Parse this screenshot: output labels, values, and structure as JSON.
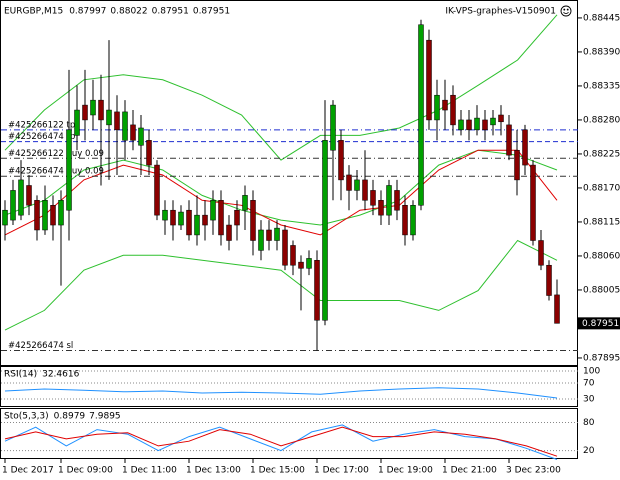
{
  "symbol": "EURGBP,M15",
  "terminal": "IK-VPS-graphes-V150901",
  "chart_data": [
    {
      "type": "candlestick",
      "categories": [
        "1 Dec 2017",
        null,
        null,
        null,
        null,
        null,
        null,
        "1 Dec 09:00",
        null,
        null,
        null,
        null,
        null,
        null,
        null,
        "1 Dec 11:00",
        null,
        null,
        null,
        null,
        null,
        null,
        null,
        "1 Dec 13:00",
        null,
        null,
        null,
        null,
        null,
        null,
        null,
        "1 Dec 15:00",
        null,
        null,
        null,
        null,
        null,
        null,
        null,
        "1 Dec 17:00",
        null,
        null,
        null,
        null,
        null,
        null,
        null,
        "1 Dec 19:00",
        null,
        null,
        null,
        null,
        null,
        null,
        null,
        "1 Dec 21:00",
        null,
        null,
        null,
        null,
        null,
        null,
        null,
        "3 Dec 23:00",
        null,
        null,
        null,
        null,
        null,
        null
      ],
      "open": [
        0.8811,
        0.88118,
        0.88126,
        0.88174,
        0.8815,
        0.88102,
        0.88142,
        0.8811,
        0.88134,
        0.88255,
        0.88304,
        0.88288,
        0.88312,
        0.88272,
        0.88293,
        0.88247,
        0.88272,
        0.88239,
        0.88247,
        0.88207,
        0.88118,
        0.88134,
        0.8811,
        0.88134,
        0.88094,
        0.88126,
        0.88118,
        0.8815,
        0.8811,
        0.88134,
        0.88134,
        0.8815,
        0.88069,
        0.88102,
        0.88085,
        0.88102,
        0.88077,
        0.8805,
        0.8804,
        0.88053,
        0.87956,
        0.88231,
        0.88247,
        0.88191,
        0.88166,
        0.88183,
        0.88166,
        0.8815,
        0.88126,
        0.88166,
        0.88142,
        0.88094,
        0.88142,
        0.88409,
        0.8828,
        0.88312,
        0.8832,
        0.88264,
        0.8828,
        0.88264,
        0.8828,
        0.88272,
        0.88288,
        0.88272,
        0.88231,
        0.88264,
        0.88207,
        0.88085,
        0.88045,
        0.87997
      ],
      "high": [
        0.8815,
        0.88183,
        0.88215,
        0.88191,
        0.88158,
        0.88174,
        0.88158,
        0.88166,
        0.88361,
        0.88336,
        0.88361,
        0.88345,
        0.88353,
        0.88409,
        0.8832,
        0.88312,
        0.88296,
        0.88288,
        0.88264,
        0.88215,
        0.8815,
        0.8815,
        0.88142,
        0.8815,
        0.88158,
        0.8815,
        0.88166,
        0.88166,
        0.88126,
        0.8815,
        0.88174,
        0.88166,
        0.88118,
        0.88118,
        0.88118,
        0.8811,
        0.88085,
        0.88061,
        0.88069,
        0.88069,
        0.88312,
        0.88312,
        0.88264,
        0.88207,
        0.88199,
        0.88231,
        0.88183,
        0.88166,
        0.88183,
        0.88183,
        0.88158,
        0.8815,
        0.88442,
        0.88426,
        0.88345,
        0.88345,
        0.88336,
        0.88296,
        0.88296,
        0.88304,
        0.88296,
        0.88296,
        0.88304,
        0.88288,
        0.88264,
        0.88272,
        0.88215,
        0.88102,
        0.88053,
        0.88022
      ],
      "low": [
        0.88085,
        0.8811,
        0.88118,
        0.88126,
        0.88085,
        0.88094,
        0.88085,
        0.88012,
        0.88085,
        0.88231,
        0.88247,
        0.88264,
        0.88174,
        0.88183,
        0.88191,
        0.88215,
        0.88231,
        0.88191,
        0.88191,
        0.88118,
        0.88094,
        0.88085,
        0.88102,
        0.88085,
        0.88077,
        0.88085,
        0.88094,
        0.88077,
        0.88069,
        0.88085,
        0.88102,
        0.88061,
        0.88053,
        0.88069,
        0.88069,
        0.88037,
        0.88029,
        0.87972,
        0.88029,
        0.87907,
        0.87948,
        0.8815,
        0.8815,
        0.88134,
        0.8815,
        0.88134,
        0.88126,
        0.8811,
        0.8811,
        0.88118,
        0.88077,
        0.88085,
        0.88134,
        0.88264,
        0.88247,
        0.88264,
        0.88255,
        0.88255,
        0.88247,
        0.88255,
        0.88247,
        0.88255,
        0.88255,
        0.88215,
        0.88158,
        0.88191,
        0.88077,
        0.88037,
        0.87988,
        0.87951
      ],
      "close": [
        0.88134,
        0.88166,
        0.88183,
        0.88142,
        0.88102,
        0.8815,
        0.8811,
        0.8815,
        0.88264,
        0.88296,
        0.8828,
        0.88312,
        0.8828,
        0.88296,
        0.88264,
        0.88293,
        0.88247,
        0.88267,
        0.88207,
        0.88126,
        0.88134,
        0.8811,
        0.88131,
        0.88094,
        0.88126,
        0.8811,
        0.8815,
        0.88094,
        0.88085,
        0.8811,
        0.88158,
        0.88085,
        0.88102,
        0.88085,
        0.88105,
        0.88045,
        0.88045,
        0.8804,
        0.88056,
        0.87956,
        0.88247,
        0.88304,
        0.88183,
        0.88166,
        0.88183,
        0.8815,
        0.88142,
        0.88126,
        0.88174,
        0.88134,
        0.88094,
        0.88142,
        0.88434,
        0.8828,
        0.8832,
        0.88296,
        0.88272,
        0.8828,
        0.88264,
        0.88283,
        0.88264,
        0.88283,
        0.88277,
        0.88223,
        0.88183,
        0.88207,
        0.88085,
        0.88045,
        0.87996,
        0.87951
      ],
      "up_color": "#00a000",
      "down_color": "#8b0000",
      "lines": [
        {
          "color": "#2ec02e",
          "values": [
            0.88231,
            0.88296,
            0.88345,
            0.88353,
            0.88345,
            0.8832,
            0.88288,
            0.88215,
            0.88255,
            0.88255,
            0.88267,
            0.88296,
            0.88336,
            0.88377,
            0.8845
          ]
        },
        {
          "color": "#2ec02e",
          "values": [
            0.88126,
            0.8815,
            0.88199,
            0.88215,
            0.88199,
            0.88158,
            0.88134,
            0.88118,
            0.8811,
            0.88126,
            0.8815,
            0.88207,
            0.88231,
            0.88223,
            0.88199
          ]
        },
        {
          "color": "#2ec02e",
          "values": [
            0.8794,
            0.87972,
            0.88037,
            0.88061,
            0.88061,
            0.88053,
            0.88045,
            0.88037,
            0.87988,
            0.87988,
            0.87988,
            0.87972,
            0.88004,
            0.88085,
            0.88053
          ]
        },
        {
          "color": "#e00000",
          "values": [
            0.88094,
            0.88126,
            0.88183,
            0.88207,
            0.88191,
            0.8815,
            0.88142,
            0.8811,
            0.88094,
            0.88134,
            0.88142,
            0.88199,
            0.88231,
            0.88231,
            0.8815
          ]
        }
      ],
      "levels": [
        {
          "label": "#425266122 tp",
          "value": 0.88264,
          "color": "#1f2fd0",
          "dash": "dash-dot"
        },
        {
          "label": "#425266474 tp",
          "value": 0.88245,
          "color": "#1f2fd0",
          "dash": "dash"
        },
        {
          "label": "#425266122 buy 0.09",
          "value": 0.88218,
          "color": "#333333",
          "dash": "dash-dot"
        },
        {
          "label": "#425266474 buy 0.09",
          "value": 0.88189,
          "color": "#333333",
          "dash": "dash-dot"
        },
        {
          "label": "#425266474 sl",
          "value": 0.87907,
          "color": "#333333",
          "dash": "dash-dot"
        }
      ],
      "ylim": [
        0.87882,
        0.88474
      ],
      "yticks": [
        0.88445,
        {
          "value": 0.8839,
          "label": "0.88390"
        },
        0.88335,
        {
          "value": 0.8828,
          "label": "0.88280"
        },
        0.88225,
        {
          "value": 0.8817,
          "label": "0.88170"
        },
        0.88115,
        {
          "value": 0.8806,
          "label": "0.88060"
        },
        0.88005,
        0.87895
      ]
    },
    {
      "type": "line",
      "title": "RSI(14)",
      "color": "#1e90ff",
      "values": [
        50,
        55,
        52,
        48,
        50,
        45,
        47,
        45,
        42,
        50,
        55,
        58,
        55,
        45,
        32.4616
      ],
      "ylim": [
        10,
        110
      ],
      "yticks": [
        100,
        70,
        30
      ],
      "grid": true
    },
    {
      "type": "line",
      "title": "Sto(5,3,3)",
      "series": [
        {
          "color": "#1e90ff",
          "values": [
            40,
            70,
            30,
            65,
            55,
            20,
            50,
            70,
            45,
            20,
            60,
            75,
            40,
            55,
            65,
            50,
            45,
            25,
            0.8979
          ]
        },
        {
          "color": "#e00000",
          "values": [
            45,
            60,
            45,
            55,
            58,
            30,
            40,
            65,
            55,
            30,
            50,
            70,
            50,
            50,
            60,
            55,
            45,
            30,
            7.9895
          ]
        }
      ],
      "ylim": [
        2,
        109
      ],
      "yticks": [
        80,
        20
      ],
      "grid": true
    }
  ]
}
